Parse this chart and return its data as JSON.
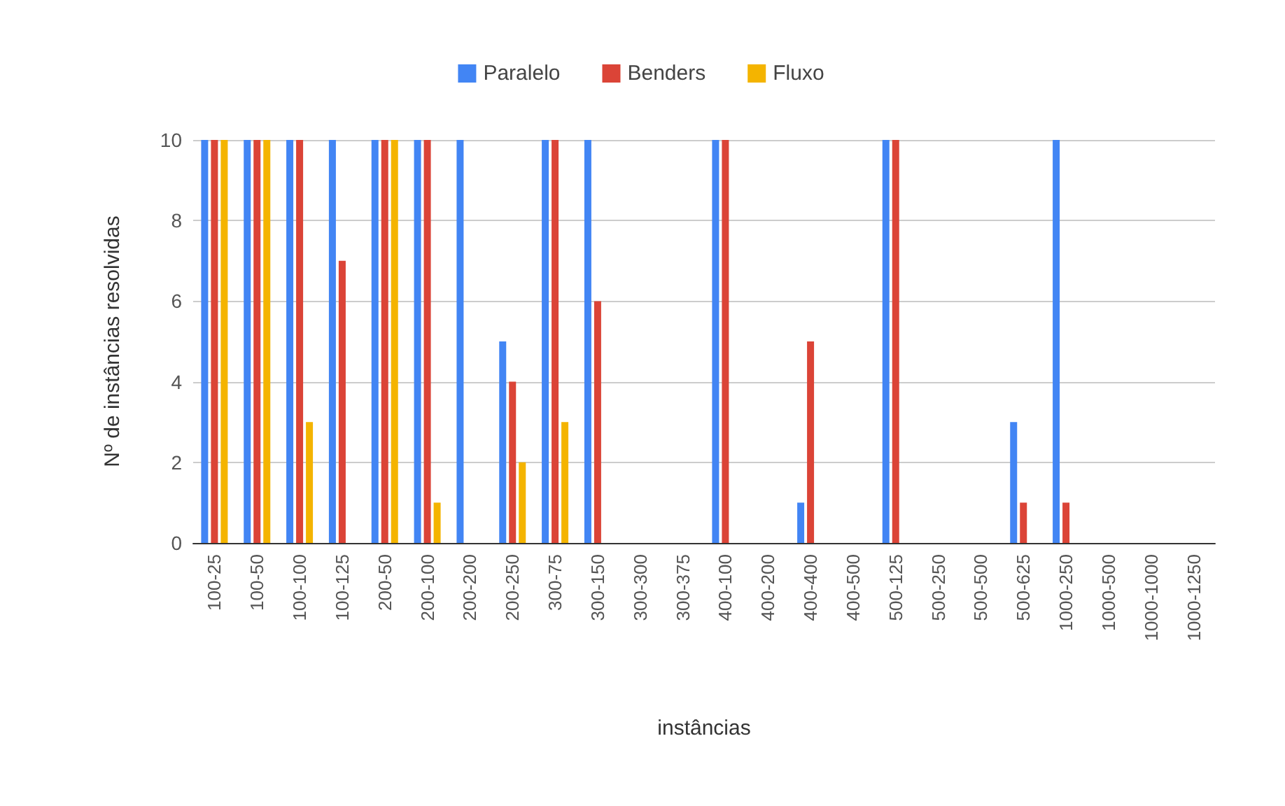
{
  "chart_data": {
    "type": "bar",
    "xlabel": "instâncias",
    "ylabel": "Nº de instâncias resolvidas",
    "categories": [
      "100-25",
      "100-50",
      "100-100",
      "100-125",
      "200-50",
      "200-100",
      "200-200",
      "200-250",
      "300-75",
      "300-150",
      "300-300",
      "300-375",
      "400-100",
      "400-200",
      "400-400",
      "400-500",
      "500-125",
      "500-250",
      "500-500",
      "500-625",
      "1000-250",
      "1000-500",
      "1000-1000",
      "1000-1250"
    ],
    "series": [
      {
        "name": "Paralelo",
        "color": "#4285f4",
        "values": [
          10,
          10,
          10,
          10,
          10,
          10,
          10,
          5,
          10,
          10,
          0,
          0,
          10,
          0,
          1,
          0,
          10,
          0,
          0,
          3,
          10,
          0,
          0,
          0
        ]
      },
      {
        "name": "Benders",
        "color": "#db4437",
        "values": [
          10,
          10,
          10,
          7,
          10,
          10,
          0,
          4,
          10,
          6,
          0,
          0,
          10,
          0,
          5,
          0,
          10,
          0,
          0,
          1,
          1,
          0,
          0,
          0
        ]
      },
      {
        "name": "Fluxo",
        "color": "#f4b400",
        "values": [
          10,
          10,
          3,
          0,
          10,
          1,
          0,
          2,
          3,
          0,
          0,
          0,
          0,
          0,
          0,
          0,
          0,
          0,
          0,
          0,
          0,
          0,
          0,
          0
        ]
      }
    ],
    "ylim": [
      0,
      10
    ],
    "yticks": [
      0,
      2,
      4,
      6,
      8,
      10
    ],
    "grid": "y",
    "legend": "top"
  }
}
